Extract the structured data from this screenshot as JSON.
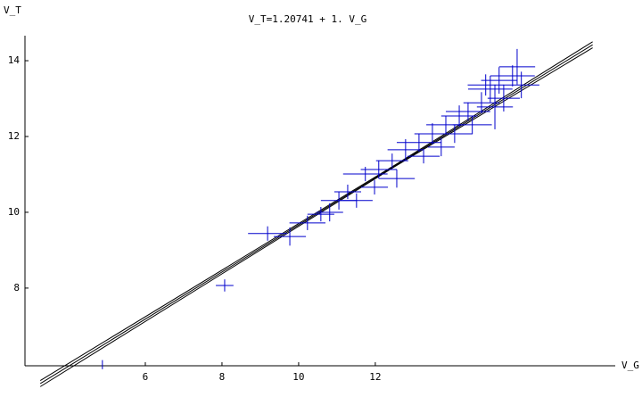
{
  "chart_data": {
    "type": "errorbar_scatter",
    "title": "V_T=1.20741 + 1. V_G",
    "x_label": "V_G",
    "y_label": "V_T",
    "xlim": [
      2.86,
      18.26
    ],
    "ylim": [
      5.95,
      14.66
    ],
    "xticks": [
      6,
      8,
      10,
      12
    ],
    "yticks": [
      8,
      10,
      12,
      14
    ],
    "color": "#0000cc",
    "x": [
      8.07,
      4.88,
      9.19,
      9.77,
      10.23,
      10.58,
      11.05,
      11.28,
      11.74,
      12.09,
      12.44,
      12.79,
      13.14,
      13.49,
      13.84,
      14.19,
      14.42,
      14.77,
      15.0,
      15.23,
      15.58,
      15.7,
      15.35,
      14.53,
      14.07,
      13.72,
      13.26,
      12.56,
      11.98,
      11.51,
      10.81,
      15.12,
      14.88,
      15.81
    ],
    "y": [
      8.07,
      5.98,
      9.44,
      9.36,
      9.72,
      9.95,
      10.31,
      10.54,
      11.01,
      11.13,
      11.36,
      11.65,
      11.84,
      12.07,
      12.31,
      12.54,
      12.66,
      12.89,
      13.25,
      13.48,
      13.6,
      13.84,
      13.01,
      12.31,
      12.07,
      11.72,
      11.48,
      10.89,
      10.66,
      10.31,
      10.0,
      12.78,
      13.36,
      13.36
    ],
    "xerr": [
      0.23,
      0,
      0.51,
      0.42,
      0.47,
      0.35,
      0.47,
      0.35,
      0.58,
      0.47,
      0.42,
      0.47,
      0.58,
      0.47,
      0.51,
      0.47,
      0.58,
      0.47,
      0.58,
      0.47,
      0.58,
      0.47,
      0.42,
      0.51,
      0.47,
      0.35,
      0.42,
      0.47,
      0.35,
      0.42,
      0.35,
      0.47,
      0.47,
      0.47
    ],
    "yerr": [
      0.16,
      0.12,
      0.19,
      0.24,
      0.19,
      0.19,
      0.24,
      0.19,
      0.19,
      0.24,
      0.19,
      0.28,
      0.24,
      0.28,
      0.24,
      0.28,
      0.24,
      0.28,
      0.35,
      0.35,
      0.28,
      0.47,
      0.35,
      0.24,
      0.24,
      0.24,
      0.19,
      0.24,
      0.19,
      0.19,
      0.24,
      0.59,
      0.28,
      0.35
    ],
    "lines": [
      {
        "color": "#000000",
        "x": [
          3.26,
          12.5,
          17.67
        ],
        "values": [
          5.48,
          11.22,
          14.42
        ]
      },
      {
        "color": "#000000",
        "x": [
          3.26,
          12.5,
          17.67
        ],
        "values": [
          5.56,
          11.24,
          14.5
        ]
      },
      {
        "color": "#000000",
        "x": [
          3.26,
          12.5,
          17.67
        ],
        "values": [
          5.4,
          11.2,
          14.34
        ]
      }
    ]
  }
}
